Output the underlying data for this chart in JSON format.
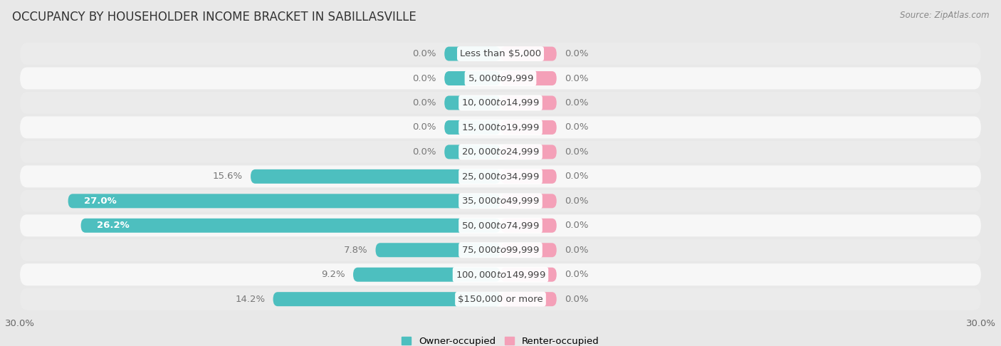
{
  "title": "OCCUPANCY BY HOUSEHOLDER INCOME BRACKET IN SABILLASVILLE",
  "source": "Source: ZipAtlas.com",
  "categories": [
    "Less than $5,000",
    "$5,000 to $9,999",
    "$10,000 to $14,999",
    "$15,000 to $19,999",
    "$20,000 to $24,999",
    "$25,000 to $34,999",
    "$35,000 to $49,999",
    "$50,000 to $74,999",
    "$75,000 to $99,999",
    "$100,000 to $149,999",
    "$150,000 or more"
  ],
  "owner_values": [
    0.0,
    0.0,
    0.0,
    0.0,
    0.0,
    15.6,
    27.0,
    26.2,
    7.8,
    9.2,
    14.2
  ],
  "renter_values": [
    0.0,
    0.0,
    0.0,
    0.0,
    0.0,
    0.0,
    0.0,
    0.0,
    0.0,
    0.0,
    0.0
  ],
  "owner_color": "#4dbfbf",
  "renter_color": "#f4a0b8",
  "background_color": "#e8e8e8",
  "row_color_odd": "#ebebeb",
  "row_color_even": "#f7f7f7",
  "axis_limit": 30.0,
  "bar_height": 0.58,
  "stub_size": 3.5,
  "label_fontsize": 9.5,
  "title_fontsize": 12,
  "legend_fontsize": 9.5,
  "axis_label_fontsize": 9.5,
  "value_label_color_outside": "#777777",
  "value_label_color_inside": "#ffffff"
}
